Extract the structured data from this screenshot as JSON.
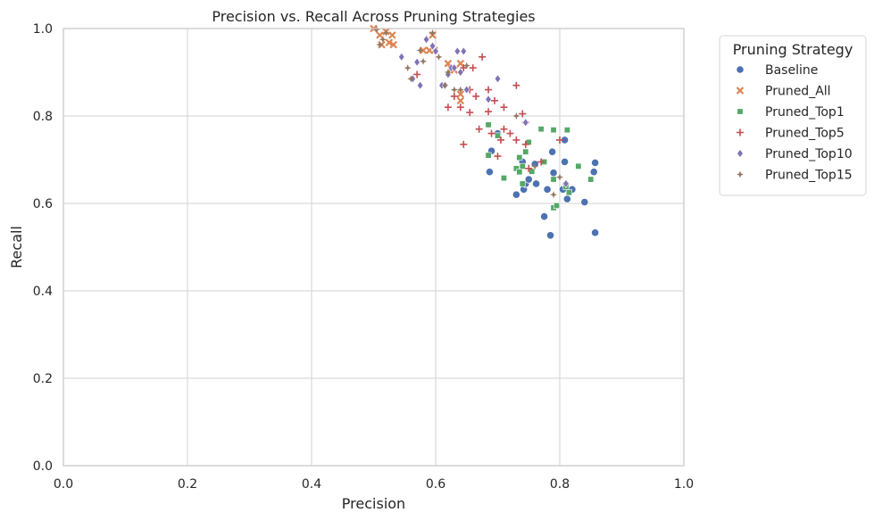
{
  "chart_data": {
    "type": "scatter",
    "title": "Precision vs. Recall Across Pruning Strategies",
    "xlabel": "Precision",
    "ylabel": "Recall",
    "xlim": [
      0,
      1
    ],
    "ylim": [
      0,
      1
    ],
    "xticks": [
      "0.0",
      "0.2",
      "0.4",
      "0.6",
      "0.8",
      "1.0"
    ],
    "yticks": [
      "0.0",
      "0.2",
      "0.4",
      "0.6",
      "0.8",
      "1.0"
    ],
    "grid": true,
    "legend": {
      "title": "Pruning Strategy",
      "placement": "outside-right"
    },
    "series": [
      {
        "name": "Baseline",
        "color": "#4c72b0",
        "marker": "circle",
        "points": [
          [
            0.69,
            0.72
          ],
          [
            0.7,
            0.76
          ],
          [
            0.687,
            0.672
          ],
          [
            0.73,
            0.62
          ],
          [
            0.74,
            0.695
          ],
          [
            0.742,
            0.632
          ],
          [
            0.745,
            0.645
          ],
          [
            0.75,
            0.655
          ],
          [
            0.76,
            0.69
          ],
          [
            0.762,
            0.645
          ],
          [
            0.775,
            0.57
          ],
          [
            0.78,
            0.632
          ],
          [
            0.785,
            0.527
          ],
          [
            0.788,
            0.718
          ],
          [
            0.79,
            0.67
          ],
          [
            0.805,
            0.632
          ],
          [
            0.808,
            0.745
          ],
          [
            0.808,
            0.695
          ],
          [
            0.81,
            0.643
          ],
          [
            0.812,
            0.61
          ],
          [
            0.82,
            0.632
          ],
          [
            0.84,
            0.603
          ],
          [
            0.855,
            0.672
          ],
          [
            0.857,
            0.693
          ],
          [
            0.857,
            0.533
          ]
        ]
      },
      {
        "name": "Pruned_All",
        "color": "#dd8452",
        "marker": "x",
        "points": [
          [
            0.5,
            1.0
          ],
          [
            0.51,
            0.985
          ],
          [
            0.513,
            0.963
          ],
          [
            0.52,
            0.993
          ],
          [
            0.525,
            0.968
          ],
          [
            0.53,
            0.985
          ],
          [
            0.532,
            0.963
          ],
          [
            0.58,
            0.95
          ],
          [
            0.59,
            0.95
          ],
          [
            0.595,
            0.985
          ],
          [
            0.598,
            0.95
          ],
          [
            0.62,
            0.92
          ],
          [
            0.625,
            0.908
          ],
          [
            0.63,
            0.905
          ],
          [
            0.64,
            0.835
          ],
          [
            0.64,
            0.92
          ],
          [
            0.64,
            0.85
          ]
        ]
      },
      {
        "name": "Pruned_Top1",
        "color": "#55a868",
        "marker": "square",
        "points": [
          [
            0.685,
            0.78
          ],
          [
            0.685,
            0.71
          ],
          [
            0.7,
            0.755
          ],
          [
            0.71,
            0.658
          ],
          [
            0.73,
            0.68
          ],
          [
            0.735,
            0.705
          ],
          [
            0.735,
            0.672
          ],
          [
            0.74,
            0.645
          ],
          [
            0.74,
            0.685
          ],
          [
            0.745,
            0.718
          ],
          [
            0.75,
            0.74
          ],
          [
            0.755,
            0.673
          ],
          [
            0.77,
            0.77
          ],
          [
            0.775,
            0.695
          ],
          [
            0.79,
            0.768
          ],
          [
            0.79,
            0.655
          ],
          [
            0.79,
            0.59
          ],
          [
            0.795,
            0.595
          ],
          [
            0.81,
            0.638
          ],
          [
            0.812,
            0.768
          ],
          [
            0.815,
            0.625
          ],
          [
            0.83,
            0.685
          ],
          [
            0.85,
            0.655
          ]
        ]
      },
      {
        "name": "Pruned_Top5",
        "color": "#c44e52",
        "marker": "plus",
        "points": [
          [
            0.57,
            0.895
          ],
          [
            0.62,
            0.82
          ],
          [
            0.63,
            0.845
          ],
          [
            0.64,
            0.82
          ],
          [
            0.645,
            0.91
          ],
          [
            0.645,
            0.735
          ],
          [
            0.655,
            0.86
          ],
          [
            0.655,
            0.808
          ],
          [
            0.66,
            0.91
          ],
          [
            0.665,
            0.845
          ],
          [
            0.67,
            0.77
          ],
          [
            0.675,
            0.935
          ],
          [
            0.685,
            0.86
          ],
          [
            0.685,
            0.81
          ],
          [
            0.69,
            0.76
          ],
          [
            0.695,
            0.835
          ],
          [
            0.7,
            0.708
          ],
          [
            0.705,
            0.745
          ],
          [
            0.71,
            0.82
          ],
          [
            0.71,
            0.77
          ],
          [
            0.72,
            0.76
          ],
          [
            0.73,
            0.87
          ],
          [
            0.73,
            0.745
          ],
          [
            0.74,
            0.805
          ],
          [
            0.745,
            0.735
          ],
          [
            0.745,
            0.785
          ],
          [
            0.75,
            0.68
          ],
          [
            0.77,
            0.695
          ],
          [
            0.8,
            0.745
          ]
        ]
      },
      {
        "name": "Pruned_Top10",
        "color": "#8172b3",
        "marker": "diamond",
        "points": [
          [
            0.545,
            0.935
          ],
          [
            0.563,
            0.885
          ],
          [
            0.57,
            0.923
          ],
          [
            0.575,
            0.87
          ],
          [
            0.585,
            0.975
          ],
          [
            0.595,
            0.96
          ],
          [
            0.6,
            0.948
          ],
          [
            0.61,
            0.87
          ],
          [
            0.615,
            0.87
          ],
          [
            0.62,
            0.895
          ],
          [
            0.625,
            0.91
          ],
          [
            0.63,
            0.91
          ],
          [
            0.635,
            0.948
          ],
          [
            0.64,
            0.9
          ],
          [
            0.645,
            0.948
          ],
          [
            0.65,
            0.86
          ],
          [
            0.685,
            0.838
          ],
          [
            0.7,
            0.885
          ],
          [
            0.745,
            0.785
          ],
          [
            0.81,
            0.645
          ]
        ]
      },
      {
        "name": "Pruned_Top15",
        "color": "#937860",
        "marker": "star",
        "points": [
          [
            0.505,
            0.998
          ],
          [
            0.51,
            0.963
          ],
          [
            0.515,
            0.975
          ],
          [
            0.52,
            0.99
          ],
          [
            0.555,
            0.91
          ],
          [
            0.56,
            0.885
          ],
          [
            0.575,
            0.95
          ],
          [
            0.58,
            0.925
          ],
          [
            0.595,
            0.99
          ],
          [
            0.605,
            0.935
          ],
          [
            0.615,
            0.87
          ],
          [
            0.62,
            0.9
          ],
          [
            0.63,
            0.86
          ],
          [
            0.64,
            0.86
          ],
          [
            0.65,
            0.915
          ],
          [
            0.73,
            0.8
          ],
          [
            0.76,
            0.685
          ],
          [
            0.79,
            0.62
          ],
          [
            0.8,
            0.66
          ]
        ]
      }
    ]
  }
}
